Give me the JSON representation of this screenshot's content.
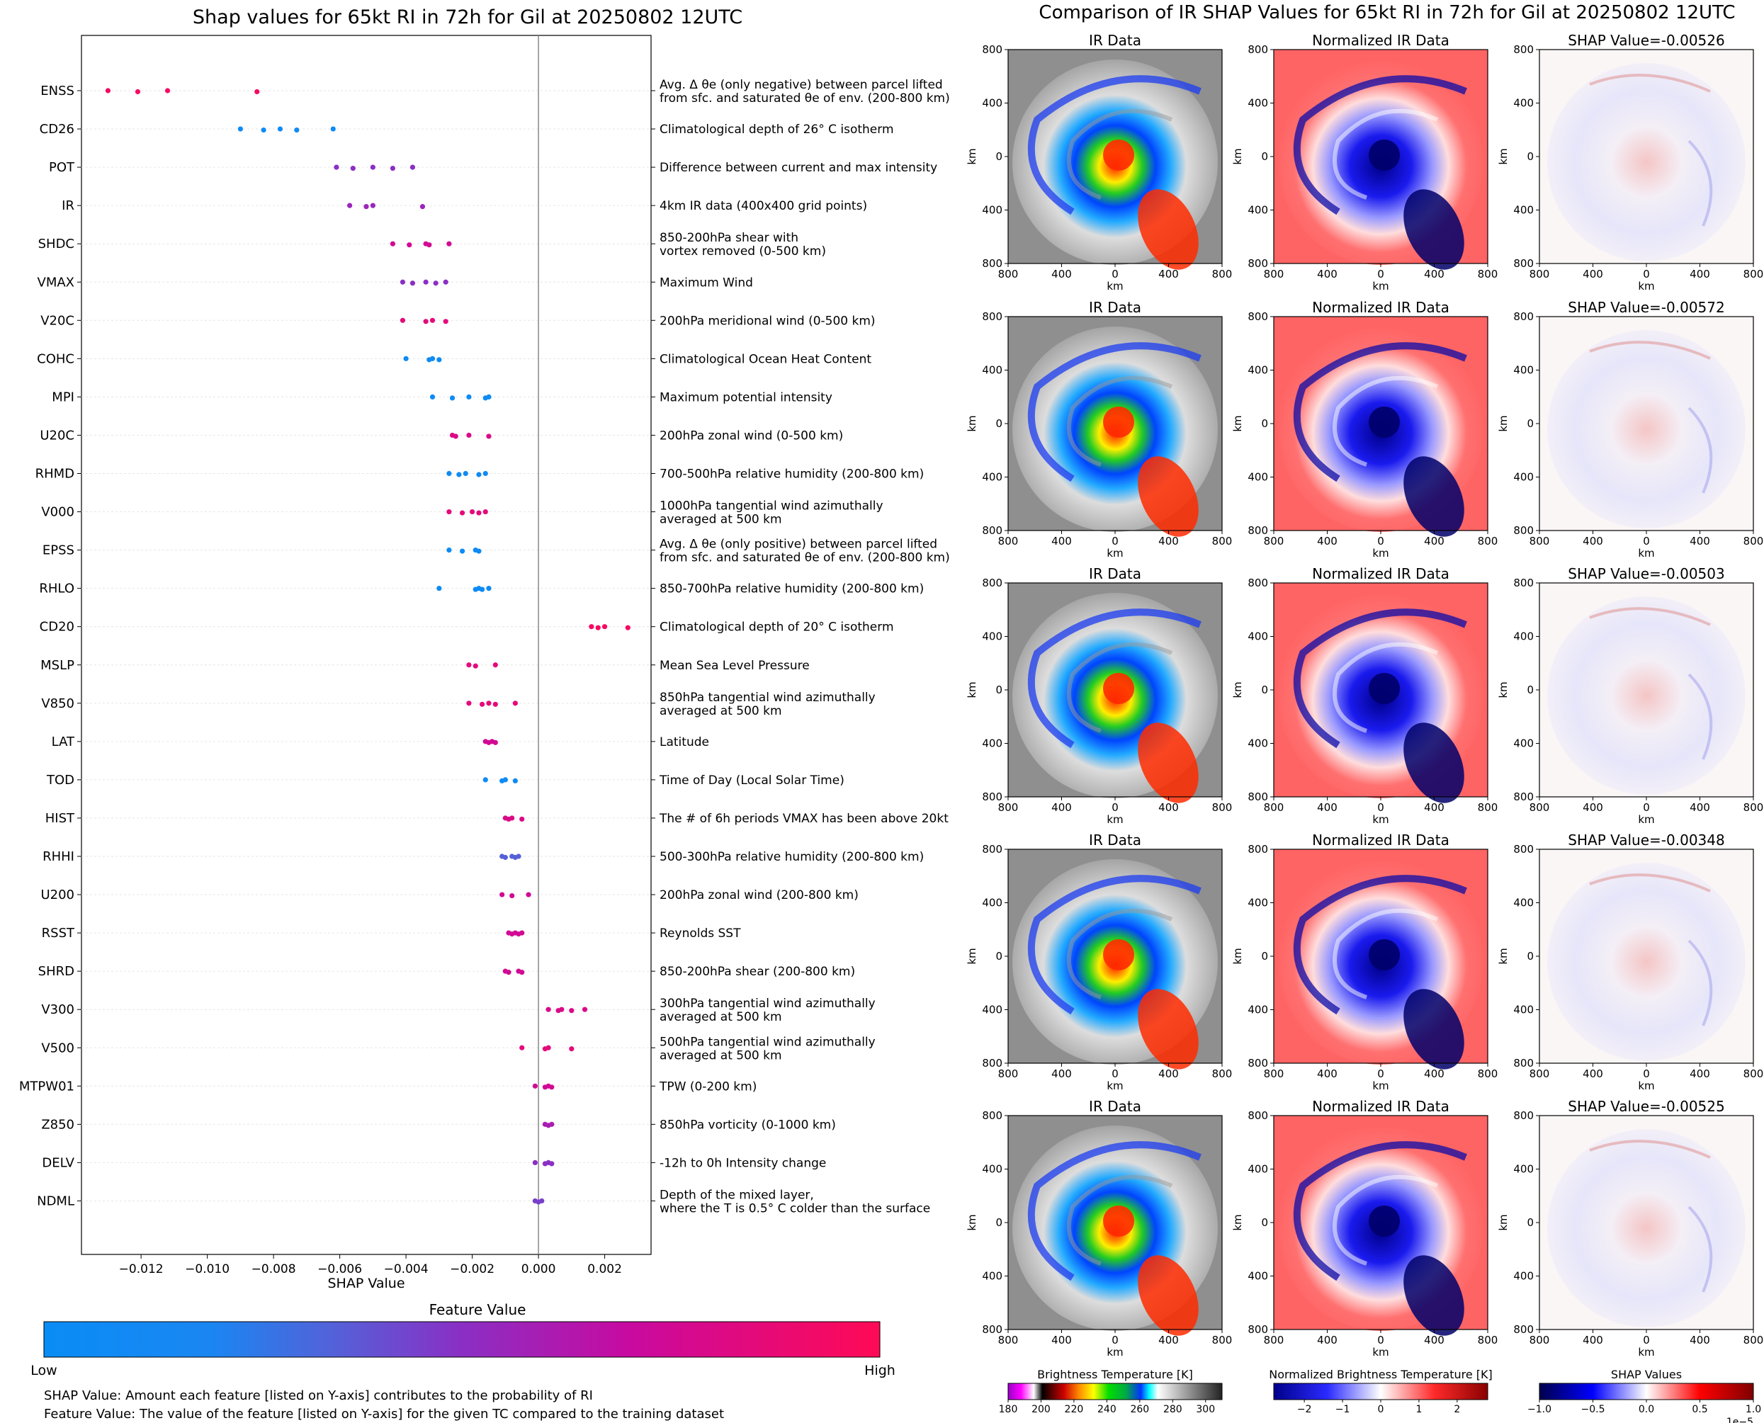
{
  "left_title": "Shap values for 65kt RI in 72h for Gil at 20250802 12UTC",
  "right_title": "Comparison of IR SHAP Values for 65kt RI in 72h for Gil at 20250802 12UTC",
  "footer_line1": "SHAP Value: Amount each feature [listed on Y-axis] contributes to the probability of RI",
  "footer_line2": "Feature Value: The value of the feature [listed on Y-axis] for the given TC compared to the training dataset",
  "colors": {
    "low": "#0a8cf5",
    "mid": "#8a2fc4",
    "high": "#ff0a55",
    "zero_line": "#888888"
  },
  "chart_data": [
    {
      "type": "scatter",
      "title": "Shap values for 65kt RI in 72h for Gil at 20250802 12UTC",
      "xlabel": "SHAP Value",
      "xlim": [
        -0.0138,
        0.0034
      ],
      "xticks": [
        "-0.012",
        "-0.010",
        "-0.008",
        "-0.006",
        "-0.004",
        "-0.002",
        "0.000",
        "0.002"
      ],
      "xtick_values": [
        -0.012,
        -0.01,
        -0.008,
        -0.006,
        -0.004,
        -0.002,
        0.0,
        0.002
      ],
      "colorbar": {
        "label": "Feature Value",
        "low_label": "Low",
        "high_label": "High"
      },
      "features": [
        {
          "name": "ENSS",
          "desc": [
            "Avg. Δ θe (only negative) between parcel lifted",
            "from sfc. and saturated θe of env. (200-800 km)"
          ],
          "fv": 0.95,
          "values": [
            -0.013,
            -0.0121,
            -0.0112,
            -0.0085
          ]
        },
        {
          "name": "CD26",
          "desc": [
            "Climatological depth of 26° C isotherm"
          ],
          "fv": 0.05,
          "values": [
            -0.009,
            -0.0083,
            -0.0078,
            -0.0073,
            -0.0062
          ]
        },
        {
          "name": "POT",
          "desc": [
            "Difference between current and max intensity"
          ],
          "fv": 0.5,
          "values": [
            -0.0061,
            -0.0056,
            -0.005,
            -0.0044,
            -0.0038
          ]
        },
        {
          "name": "IR",
          "desc": [
            "4km IR data (400x400 grid points)"
          ],
          "fv": 0.55,
          "values": [
            -0.0057,
            -0.0052,
            -0.005,
            -0.0035
          ]
        },
        {
          "name": "SHDC",
          "desc": [
            "850-200hPa shear with",
            "vortex removed (0-500 km)"
          ],
          "fv": 0.75,
          "values": [
            -0.0044,
            -0.0039,
            -0.0034,
            -0.0033,
            -0.0027
          ]
        },
        {
          "name": "VMAX",
          "desc": [
            "Maximum Wind"
          ],
          "fv": 0.5,
          "values": [
            -0.0041,
            -0.0038,
            -0.0034,
            -0.0031,
            -0.0028
          ]
        },
        {
          "name": "V20C",
          "desc": [
            "200hPa meridional wind (0-500 km)"
          ],
          "fv": 0.85,
          "values": [
            -0.0041,
            -0.0034,
            -0.0032,
            -0.0028
          ]
        },
        {
          "name": "COHC",
          "desc": [
            "Climatological Ocean Heat Content"
          ],
          "fv": 0.05,
          "values": [
            -0.004,
            -0.0033,
            -0.0032,
            -0.003
          ]
        },
        {
          "name": "MPI",
          "desc": [
            "Maximum potential intensity"
          ],
          "fv": 0.05,
          "values": [
            -0.0032,
            -0.0026,
            -0.0021,
            -0.0016,
            -0.0015
          ]
        },
        {
          "name": "U20C",
          "desc": [
            "200hPa zonal wind (0-500 km)"
          ],
          "fv": 0.8,
          "values": [
            -0.0026,
            -0.0025,
            -0.0021,
            -0.0015
          ]
        },
        {
          "name": "RHMD",
          "desc": [
            "700-500hPa relative humidity (200-800 km)"
          ],
          "fv": 0.08,
          "values": [
            -0.0027,
            -0.0024,
            -0.0022,
            -0.0018,
            -0.0016
          ]
        },
        {
          "name": "V000",
          "desc": [
            "1000hPa tangential wind azimuthally",
            "averaged at 500 km"
          ],
          "fv": 0.85,
          "values": [
            -0.0027,
            -0.0023,
            -0.002,
            -0.0018,
            -0.0016
          ]
        },
        {
          "name": "EPSS",
          "desc": [
            "Avg. Δ θe (only positive) between parcel lifted",
            "from sfc. and saturated θe of env. (200-800 km)"
          ],
          "fv": 0.05,
          "values": [
            -0.0027,
            -0.0023,
            -0.0019,
            -0.0018
          ]
        },
        {
          "name": "RHLO",
          "desc": [
            "850-700hPa relative humidity (200-800 km)"
          ],
          "fv": 0.05,
          "values": [
            -0.003,
            -0.0019,
            -0.0018,
            -0.0017,
            -0.0015
          ]
        },
        {
          "name": "CD20",
          "desc": [
            "Climatological depth of 20° C isotherm"
          ],
          "fv": 0.95,
          "values": [
            0.0016,
            0.0018,
            0.002,
            0.0027
          ]
        },
        {
          "name": "MSLP",
          "desc": [
            "Mean Sea Level Pressure"
          ],
          "fv": 0.85,
          "values": [
            -0.0021,
            -0.0019,
            -0.0013
          ]
        },
        {
          "name": "V850",
          "desc": [
            "850hPa tangential wind azimuthally",
            "averaged at 500 km"
          ],
          "fv": 0.85,
          "values": [
            -0.0021,
            -0.0017,
            -0.0015,
            -0.0013,
            -0.0007
          ]
        },
        {
          "name": "LAT",
          "desc": [
            "Latitude"
          ],
          "fv": 0.75,
          "values": [
            -0.0016,
            -0.0015,
            -0.0014,
            -0.0013
          ]
        },
        {
          "name": "TOD",
          "desc": [
            "Time of Day (Local Solar Time)"
          ],
          "fv": 0.05,
          "values": [
            -0.0016,
            -0.0011,
            -0.001,
            -0.0007
          ]
        },
        {
          "name": "HIST",
          "desc": [
            "The # of 6h periods VMAX has been above 20kt"
          ],
          "fv": 0.8,
          "values": [
            -0.001,
            -0.0009,
            -0.0008,
            -0.0005
          ]
        },
        {
          "name": "RHHI",
          "desc": [
            "500-300hPa relative humidity (200-800 km)"
          ],
          "fv": 0.35,
          "values": [
            -0.0011,
            -0.001,
            -0.0008,
            -0.0007,
            -0.0006
          ]
        },
        {
          "name": "U200",
          "desc": [
            "200hPa zonal wind (200-800 km)"
          ],
          "fv": 0.75,
          "values": [
            -0.0011,
            -0.0008,
            -0.0003
          ]
        },
        {
          "name": "RSST",
          "desc": [
            "Reynolds SST"
          ],
          "fv": 0.75,
          "values": [
            -0.0009,
            -0.0008,
            -0.0007,
            -0.0006,
            -0.0005
          ]
        },
        {
          "name": "SHRD",
          "desc": [
            "850-200hPa shear (200-800 km)"
          ],
          "fv": 0.75,
          "values": [
            -0.001,
            -0.0009,
            -0.0006,
            -0.0005
          ]
        },
        {
          "name": "V300",
          "desc": [
            "300hPa tangential wind azimuthally",
            "averaged at 500 km"
          ],
          "fv": 0.8,
          "values": [
            0.0003,
            0.0006,
            0.0007,
            0.001,
            0.0014
          ]
        },
        {
          "name": "V500",
          "desc": [
            "500hPa tangential wind azimuthally",
            "averaged at 500 km"
          ],
          "fv": 0.85,
          "values": [
            -0.0005,
            0.0002,
            0.0003,
            0.001
          ]
        },
        {
          "name": "MTPW01",
          "desc": [
            "TPW (0-200 km)"
          ],
          "fv": 0.75,
          "values": [
            -0.0001,
            0.0002,
            0.0003,
            0.0004
          ]
        },
        {
          "name": "Z850",
          "desc": [
            "850hPa vorticity (0-1000 km)"
          ],
          "fv": 0.6,
          "values": [
            0.0002,
            0.0003,
            0.0004
          ]
        },
        {
          "name": "DELV",
          "desc": [
            "-12h to 0h Intensity change"
          ],
          "fv": 0.5,
          "values": [
            -0.0001,
            0.0002,
            0.0003,
            0.0004
          ]
        },
        {
          "name": "NDML",
          "desc": [
            "Depth of the mixed layer,",
            "where the T is 0.5° C colder than the surface"
          ],
          "fv": 0.45,
          "values": [
            -0.0001,
            0.0,
            0.0001
          ]
        }
      ]
    },
    {
      "type": "heatmap",
      "title": "Comparison of IR SHAP Values for 65kt RI in 72h for Gil at 20250802 12UTC",
      "column_titles": [
        "IR Data",
        "Normalized IR Data"
      ],
      "shap_titles": [
        "SHAP Value=-0.00526",
        "SHAP Value=-0.00572",
        "SHAP Value=-0.00503",
        "SHAP Value=-0.00348",
        "SHAP Value=-0.00525"
      ],
      "xlabel": "km",
      "ylabel": "km",
      "xticks": [
        "800",
        "400",
        "0",
        "400",
        "800"
      ],
      "yticks": [
        "800",
        "400",
        "0",
        "400",
        "800"
      ],
      "colorbars": [
        {
          "label": "Brightness Temperature [K]",
          "ticks": [
            "180",
            "200",
            "220",
            "240",
            "260",
            "280",
            "300"
          ],
          "range": [
            180,
            310
          ]
        },
        {
          "label": "Normalized Brightness Temperature [K]",
          "ticks": [
            "−2",
            "−1",
            "0",
            "1",
            "2"
          ],
          "range": [
            -2.8,
            2.8
          ]
        },
        {
          "label": "SHAP Values",
          "ticks": [
            "−1.0",
            "−0.5",
            "0.0",
            "0.5",
            "1.0"
          ],
          "range": [
            -1.0,
            1.0
          ],
          "offset": "1e−5"
        }
      ]
    }
  ]
}
